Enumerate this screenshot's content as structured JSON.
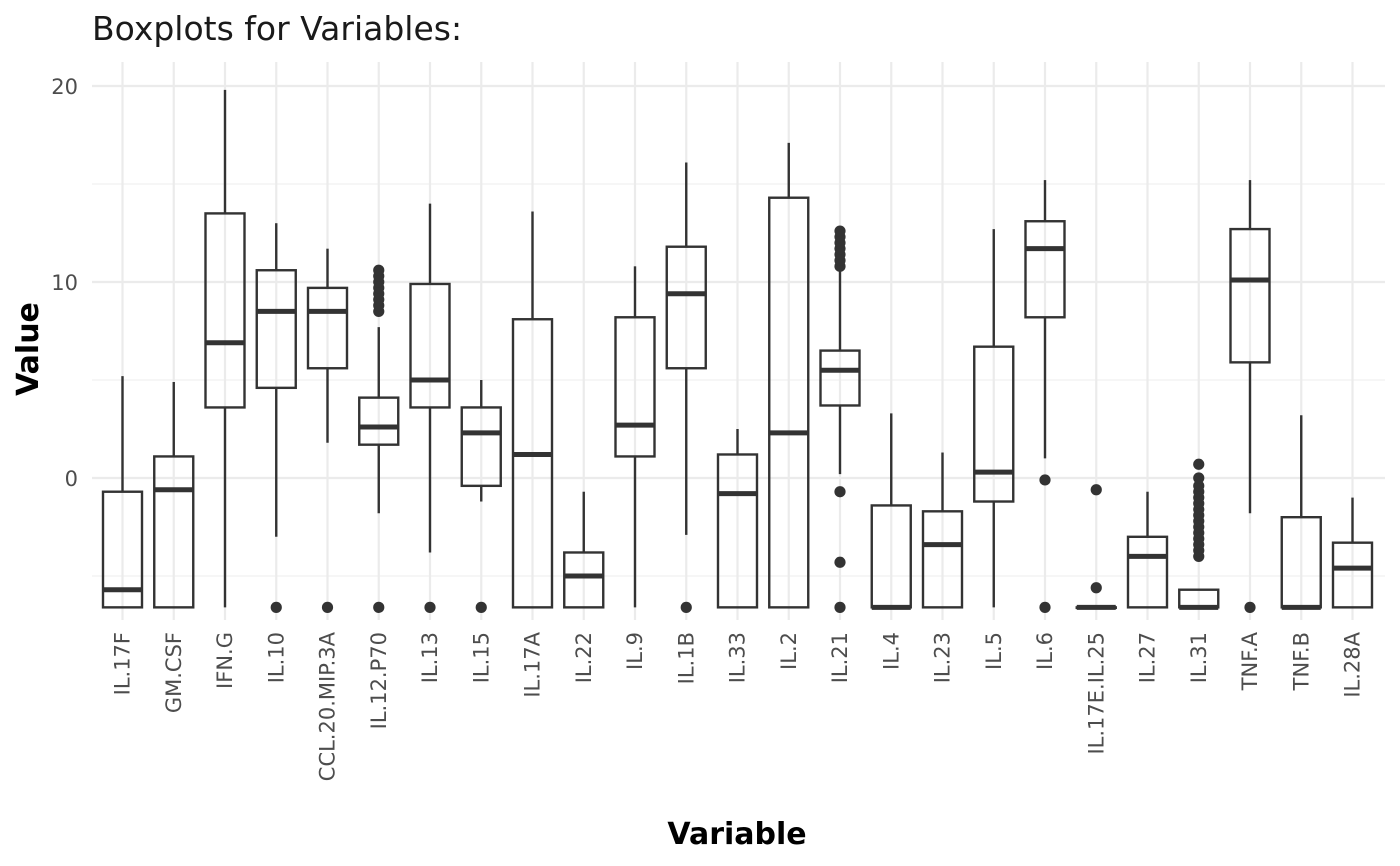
{
  "chart_data": {
    "type": "boxplot",
    "title": "Boxplots for Variables:",
    "xlabel": "Variable",
    "ylabel": "Value",
    "ylim": [
      -7.3,
      21
    ],
    "yticks": [
      0,
      10,
      20
    ],
    "grid": true,
    "categories": [
      "IL.17F",
      "GM.CSF",
      "IFN.G",
      "IL.10",
      "CCL.20.MIP.3A",
      "IL.12.P70",
      "IL.13",
      "IL.15",
      "IL.17A",
      "IL.22",
      "IL.9",
      "IL.1B",
      "IL.33",
      "IL.2",
      "IL.21",
      "IL.4",
      "IL.23",
      "IL.5",
      "IL.6",
      "IL.17E.IL.25",
      "IL.27",
      "IL.31",
      "TNF.A",
      "TNF.B",
      "IL.28A"
    ],
    "boxes": [
      {
        "name": "IL.17F",
        "whisker_low": -6.6,
        "q1": -6.6,
        "median": -5.7,
        "q3": -0.7,
        "whisker_high": 5.2,
        "outliers": []
      },
      {
        "name": "GM.CSF",
        "whisker_low": -6.6,
        "q1": -6.6,
        "median": -0.6,
        "q3": 1.1,
        "whisker_high": 4.9,
        "outliers": []
      },
      {
        "name": "IFN.G",
        "whisker_low": -6.6,
        "q1": 3.6,
        "median": 6.9,
        "q3": 13.5,
        "whisker_high": 19.8,
        "outliers": []
      },
      {
        "name": "IL.10",
        "whisker_low": -3.0,
        "q1": 4.6,
        "median": 8.5,
        "q3": 10.6,
        "whisker_high": 13.0,
        "outliers": [
          -6.6
        ]
      },
      {
        "name": "CCL.20.MIP.3A",
        "whisker_low": 1.8,
        "q1": 5.6,
        "median": 8.5,
        "q3": 9.7,
        "whisker_high": 11.7,
        "outliers": [
          -6.6
        ]
      },
      {
        "name": "IL.12.P70",
        "whisker_low": -1.8,
        "q1": 1.7,
        "median": 2.6,
        "q3": 4.1,
        "whisker_high": 7.7,
        "outliers": [
          -6.6,
          8.5,
          8.8,
          9.1,
          9.4,
          9.7,
          10.0,
          10.3,
          10.6
        ]
      },
      {
        "name": "IL.13",
        "whisker_low": -3.8,
        "q1": 3.6,
        "median": 5.0,
        "q3": 9.9,
        "whisker_high": 14.0,
        "outliers": [
          -6.6
        ]
      },
      {
        "name": "IL.15",
        "whisker_low": -1.2,
        "q1": -0.4,
        "median": 2.3,
        "q3": 3.6,
        "whisker_high": 5.0,
        "outliers": [
          -6.6
        ]
      },
      {
        "name": "IL.17A",
        "whisker_low": -6.6,
        "q1": -6.6,
        "median": 1.2,
        "q3": 8.1,
        "whisker_high": 13.6,
        "outliers": []
      },
      {
        "name": "IL.22",
        "whisker_low": -6.6,
        "q1": -6.6,
        "median": -5.0,
        "q3": -3.8,
        "whisker_high": -0.7,
        "outliers": []
      },
      {
        "name": "IL.9",
        "whisker_low": -6.6,
        "q1": 1.1,
        "median": 2.7,
        "q3": 8.2,
        "whisker_high": 10.8,
        "outliers": []
      },
      {
        "name": "IL.1B",
        "whisker_low": -2.9,
        "q1": 5.6,
        "median": 9.4,
        "q3": 11.8,
        "whisker_high": 16.1,
        "outliers": [
          -6.6
        ]
      },
      {
        "name": "IL.33",
        "whisker_low": -6.6,
        "q1": -6.6,
        "median": -0.8,
        "q3": 1.2,
        "whisker_high": 2.5,
        "outliers": []
      },
      {
        "name": "IL.2",
        "whisker_low": -6.6,
        "q1": -6.6,
        "median": 2.3,
        "q3": 14.3,
        "whisker_high": 17.1,
        "outliers": []
      },
      {
        "name": "IL.21",
        "whisker_low": 0.2,
        "q1": 3.7,
        "median": 5.5,
        "q3": 6.5,
        "whisker_high": 10.6,
        "outliers": [
          -6.6,
          -4.3,
          -0.7,
          10.8,
          11.1,
          11.4,
          11.7,
          12.0,
          12.3,
          12.6
        ]
      },
      {
        "name": "IL.4",
        "whisker_low": -6.6,
        "q1": -6.6,
        "median": -6.6,
        "q3": -1.4,
        "whisker_high": 3.3,
        "outliers": []
      },
      {
        "name": "IL.23",
        "whisker_low": -6.6,
        "q1": -6.6,
        "median": -3.4,
        "q3": -1.7,
        "whisker_high": 1.3,
        "outliers": []
      },
      {
        "name": "IL.5",
        "whisker_low": -6.6,
        "q1": -1.2,
        "median": 0.3,
        "q3": 6.7,
        "whisker_high": 12.7,
        "outliers": []
      },
      {
        "name": "IL.6",
        "whisker_low": 1.0,
        "q1": 8.2,
        "median": 11.7,
        "q3": 13.1,
        "whisker_high": 15.2,
        "outliers": [
          -6.6,
          -0.1
        ]
      },
      {
        "name": "IL.17E.IL.25",
        "whisker_low": -6.6,
        "q1": -6.6,
        "median": -6.6,
        "q3": -6.6,
        "whisker_high": -6.6,
        "outliers": [
          -5.6,
          -0.6
        ]
      },
      {
        "name": "IL.27",
        "whisker_low": -6.6,
        "q1": -6.6,
        "median": -4.0,
        "q3": -3.0,
        "whisker_high": -0.7,
        "outliers": []
      },
      {
        "name": "IL.31",
        "whisker_low": -6.6,
        "q1": -6.6,
        "median": -6.6,
        "q3": -5.7,
        "whisker_high": -5.7,
        "outliers": [
          -4.0,
          -3.7,
          -3.4,
          -3.1,
          -2.8,
          -2.5,
          -2.2,
          -1.9,
          -1.6,
          -1.3,
          -1.0,
          -0.7,
          -0.4,
          0.0,
          0.7
        ]
      },
      {
        "name": "TNF.A",
        "whisker_low": -1.8,
        "q1": 5.9,
        "median": 10.1,
        "q3": 12.7,
        "whisker_high": 15.2,
        "outliers": [
          -6.6
        ]
      },
      {
        "name": "TNF.B",
        "whisker_low": -6.6,
        "q1": -6.6,
        "median": -6.6,
        "q3": -2.0,
        "whisker_high": 3.2,
        "outliers": []
      },
      {
        "name": "IL.28A",
        "whisker_low": -6.6,
        "q1": -6.6,
        "median": -4.6,
        "q3": -3.3,
        "whisker_high": -1.0,
        "outliers": []
      }
    ]
  }
}
